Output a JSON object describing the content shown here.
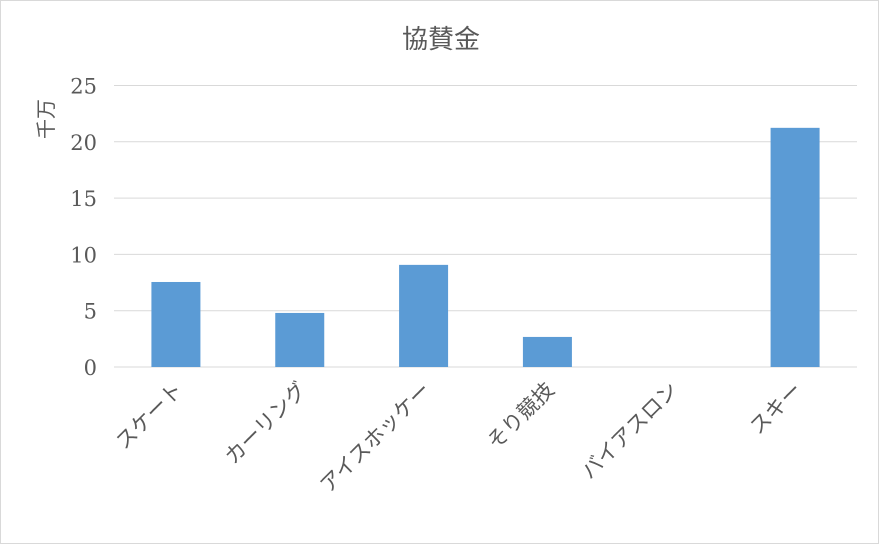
{
  "chart_data": {
    "type": "bar",
    "title": "協賛金",
    "xlabel": "",
    "ylabel": "千万",
    "categories": [
      "スケート",
      "カーリング",
      "アイスホッケー",
      "そり競技",
      "バイアスロン",
      "スキー"
    ],
    "values": [
      7.55,
      4.8,
      9.07,
      2.67,
      0,
      21.24
    ],
    "ylim": [
      0,
      25
    ],
    "yticks": [
      0,
      5,
      10,
      15,
      20,
      25
    ],
    "grid": true,
    "legend": "none",
    "colors": {
      "bar": "#5b9bd5",
      "grid": "#d9d9d9",
      "text": "#595959"
    }
  }
}
